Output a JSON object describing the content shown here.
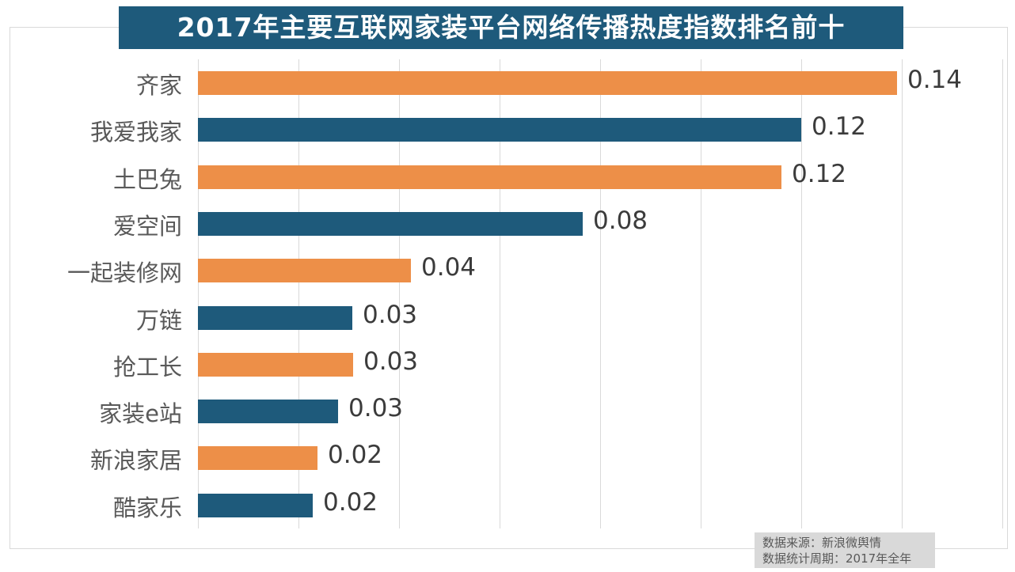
{
  "title_banner": {
    "text": "2017年主要互联网家装平台网络传播热度指数排名前十",
    "bg": "#1E5A7B",
    "color": "#FFFFFF"
  },
  "source_note": {
    "line1": "数据来源：新浪微舆情",
    "line2": "数据统计周期：2017年全年",
    "bg": "#D9D9D9",
    "color": "#595959"
  },
  "chart_data": {
    "type": "bar",
    "orientation": "horizontal",
    "title": "2017年主要互联网家装平台网络传播热度指数排名前十",
    "categories": [
      "齐家",
      "我爱我家",
      "土巴兔",
      "爱空间",
      "一起装修网",
      "万链",
      "抢工长",
      "家装e站",
      "新浪家居",
      "酷家乐"
    ],
    "values": [
      0.14,
      0.12,
      0.12,
      0.08,
      0.04,
      0.03,
      0.03,
      0.03,
      0.02,
      0.02
    ],
    "value_labels": [
      "0.14",
      "0.12",
      "0.12",
      "0.08",
      "0.04",
      "0.03",
      "0.03",
      "0.03",
      "0.02",
      "0.02"
    ],
    "bar_extents_estimated": [
      0.139,
      0.12,
      0.116,
      0.0765,
      0.0423,
      0.0307,
      0.0309,
      0.0279,
      0.0238,
      0.0229
    ],
    "xlim": [
      0,
      0.16
    ],
    "grid_step": 0.02,
    "grid": true,
    "legend": false,
    "data_labels": true,
    "xlabel": "",
    "ylabel": "",
    "colors": {
      "orange": "#ED8F48",
      "blue": "#1E5A7B",
      "category_text": "#595959",
      "value_text": "#3B3B3B",
      "gridline": "#D9D9D9"
    },
    "color_pattern": [
      "orange",
      "blue",
      "orange",
      "blue",
      "orange",
      "blue",
      "orange",
      "blue",
      "orange",
      "blue"
    ]
  }
}
